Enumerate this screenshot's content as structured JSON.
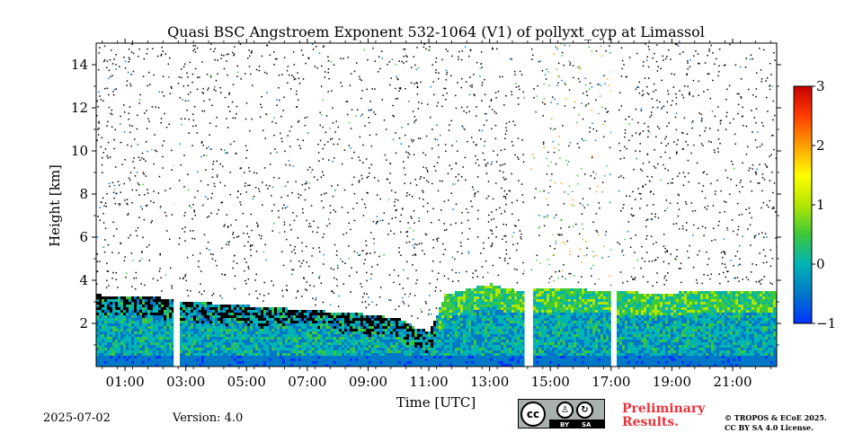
{
  "chart_data": {
    "type": "heatmap",
    "title": "Quasi BSC Angstroem Exponent 532-1064 (V1) of pollyxt_cyp at Limassol",
    "xlabel": "Time [UTC]",
    "ylabel": "Height [km]",
    "x_tick_labels": [
      "01:00",
      "03:00",
      "05:00",
      "07:00",
      "09:00",
      "11:00",
      "13:00",
      "15:00",
      "17:00",
      "19:00",
      "21:00"
    ],
    "x_tick_hours": [
      1,
      3,
      5,
      7,
      9,
      11,
      13,
      15,
      17,
      19,
      21
    ],
    "xlim_hours": [
      0.05,
      22.45
    ],
    "y_tick_labels": [
      "2",
      "4",
      "6",
      "8",
      "10",
      "12",
      "14"
    ],
    "y_tick_values": [
      2,
      4,
      6,
      8,
      10,
      12,
      14
    ],
    "ylim_km": [
      0,
      15
    ],
    "colorbar": {
      "ticks": [
        "3",
        "2",
        "1",
        "0",
        "−1"
      ],
      "tick_values": [
        3,
        2,
        1,
        0,
        -1
      ],
      "range": [
        -1,
        3
      ],
      "colors": [
        "#0033ff",
        "#0078c8",
        "#00b4b4",
        "#3cc83c",
        "#b4e600",
        "#ffff00",
        "#ffa000",
        "#ff3c00",
        "#c80000"
      ]
    },
    "data_gaps_hours": [
      [
        2.6,
        2.72
      ],
      [
        14.15,
        14.35
      ],
      [
        17.0,
        17.18
      ]
    ],
    "noise_band_hours": [
      [
        14.35,
        17.0
      ]
    ],
    "boundary_layer_top_km": [
      [
        0.05,
        3.3
      ],
      [
        1.0,
        3.25
      ],
      [
        2.0,
        3.2
      ],
      [
        3.0,
        3.0
      ],
      [
        4.0,
        2.9
      ],
      [
        5.0,
        2.8
      ],
      [
        6.0,
        2.7
      ],
      [
        7.0,
        2.6
      ],
      [
        8.0,
        2.5
      ],
      [
        9.0,
        2.4
      ],
      [
        10.0,
        2.2
      ],
      [
        10.5,
        1.8
      ],
      [
        11.0,
        1.6
      ],
      [
        11.5,
        3.3
      ],
      [
        12.0,
        3.5
      ],
      [
        13.0,
        3.8
      ],
      [
        13.5,
        3.6
      ],
      [
        14.0,
        3.5
      ],
      [
        15.0,
        3.6
      ],
      [
        16.0,
        3.55
      ],
      [
        17.0,
        3.5
      ],
      [
        18.0,
        3.4
      ],
      [
        19.0,
        3.4
      ],
      [
        20.0,
        3.5
      ],
      [
        21.0,
        3.5
      ],
      [
        22.45,
        3.5
      ]
    ]
  },
  "footer": {
    "date": "2025-07-02",
    "version": "Version: 4.0",
    "cc_logo": "cc",
    "cc_by": "BY",
    "cc_sa": "SA",
    "preliminary_line1": "Preliminary",
    "preliminary_line2": "Results.",
    "copyright_line1": "© TROPOS & ECoE 2025.",
    "copyright_line2": "CC BY SA 4.0 License."
  }
}
